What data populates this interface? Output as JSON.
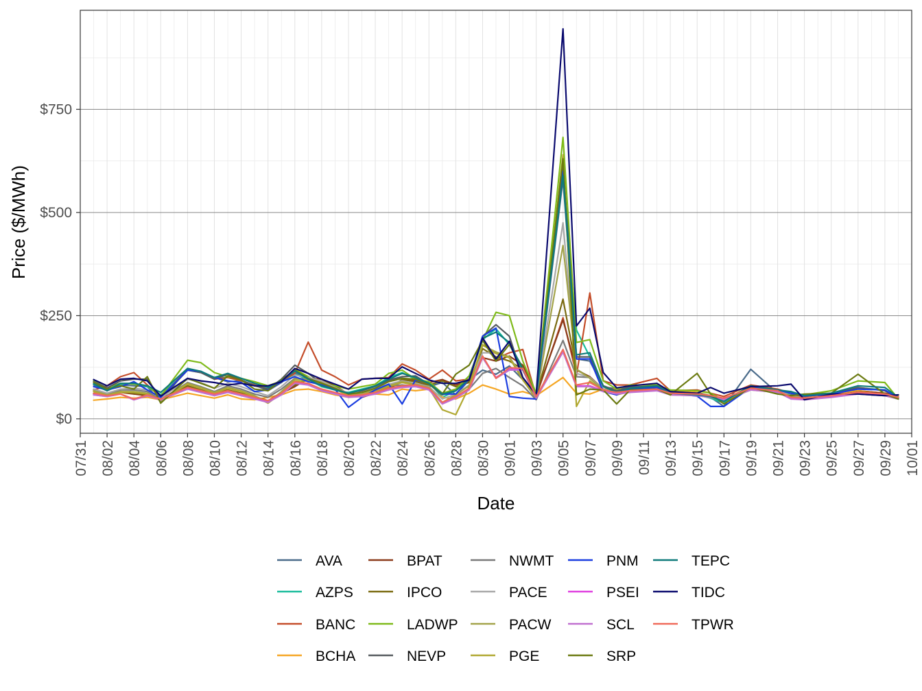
{
  "chart_data": {
    "type": "line",
    "xlabel": "Date",
    "ylabel": "Price ($/MWh)",
    "x_ticks": [
      "07/31",
      "08/02",
      "08/04",
      "08/06",
      "08/08",
      "08/10",
      "08/12",
      "08/14",
      "08/16",
      "08/18",
      "08/20",
      "08/22",
      "08/24",
      "08/26",
      "08/28",
      "08/30",
      "09/01",
      "09/03",
      "09/05",
      "09/07",
      "09/09",
      "09/11",
      "09/13",
      "09/15",
      "09/17",
      "09/19",
      "09/21",
      "09/23",
      "09/25",
      "09/27",
      "09/29",
      "10/01"
    ],
    "y_ticks": [
      {
        "value": 0,
        "label": "$0"
      },
      {
        "value": 250,
        "label": "$250"
      },
      {
        "value": 500,
        "label": "$500"
      },
      {
        "value": 750,
        "label": "$750"
      }
    ],
    "xlim": [
      "07/31",
      "10/01"
    ],
    "ylim": [
      -35,
      990
    ],
    "grid": true,
    "legend_position": "bottom",
    "key_dates": [
      "08/01",
      "08/02",
      "08/03",
      "08/04",
      "08/05",
      "08/06",
      "08/08",
      "08/09",
      "08/10",
      "08/11",
      "08/12",
      "08/13",
      "08/14",
      "08/15",
      "08/16",
      "08/17",
      "08/18",
      "08/19",
      "08/20",
      "08/21",
      "08/22",
      "08/23",
      "08/24",
      "08/25",
      "08/26",
      "08/27",
      "08/28",
      "08/29",
      "08/30",
      "08/31",
      "09/01",
      "09/02",
      "09/03",
      "09/05",
      "09/06",
      "09/07",
      "09/08",
      "09/09",
      "09/10",
      "09/12",
      "09/13",
      "09/15",
      "09/16",
      "09/17",
      "09/19",
      "09/21",
      "09/22",
      "09/23",
      "09/25",
      "09/27",
      "09/29",
      "09/30"
    ],
    "series": [
      {
        "name": "AVA",
        "color": "#4a6b8a",
        "values": [
          82,
          68,
          82,
          80,
          78,
          42,
          122,
          112,
          100,
          90,
          92,
          82,
          68,
          88,
          112,
          92,
          82,
          70,
          62,
          68,
          78,
          92,
          98,
          92,
          78,
          88,
          58,
          94,
          118,
          108,
          128,
          95,
          48,
          580,
          145,
          140,
          78,
          72,
          78,
          78,
          62,
          60,
          52,
          30,
          120,
          62,
          58,
          52,
          58,
          68,
          62,
          55
        ]
      },
      {
        "name": "AZPS",
        "color": "#1abc9c",
        "values": [
          84,
          70,
          84,
          86,
          78,
          58,
          118,
          112,
          100,
          100,
          92,
          80,
          78,
          92,
          108,
          95,
          78,
          70,
          64,
          72,
          80,
          100,
          112,
          96,
          88,
          52,
          68,
          96,
          192,
          218,
          180,
          118,
          56,
          600,
          215,
          150,
          80,
          65,
          72,
          76,
          62,
          58,
          50,
          38,
          78,
          62,
          62,
          55,
          60,
          75,
          70,
          50
        ]
      },
      {
        "name": "BANC",
        "color": "#c44d2a",
        "values": [
          70,
          80,
          102,
          112,
          82,
          52,
          120,
          115,
          96,
          100,
          92,
          82,
          72,
          92,
          110,
          186,
          118,
          102,
          82,
          96,
          98,
          100,
          133,
          118,
          96,
          118,
          92,
          96,
          196,
          146,
          160,
          168,
          54,
          245,
          105,
          305,
          92,
          82,
          82,
          98,
          68,
          70,
          62,
          54,
          82,
          72,
          62,
          52,
          58,
          68,
          62,
          55
        ]
      },
      {
        "name": "BCHA",
        "color": "#f5a623",
        "values": [
          45,
          48,
          52,
          50,
          52,
          46,
          62,
          56,
          50,
          58,
          48,
          46,
          52,
          58,
          70,
          72,
          66,
          58,
          52,
          56,
          60,
          58,
          72,
          68,
          72,
          52,
          48,
          62,
          82,
          72,
          60,
          66,
          56,
          100,
          62,
          60,
          72,
          72,
          70,
          72,
          68,
          64,
          56,
          48,
          72,
          66,
          52,
          50,
          60,
          68,
          60,
          55
        ]
      },
      {
        "name": "BPAT",
        "color": "#8b3a1a",
        "values": [
          60,
          56,
          64,
          60,
          56,
          48,
          78,
          68,
          60,
          68,
          60,
          52,
          42,
          62,
          78,
          98,
          96,
          80,
          60,
          52,
          62,
          72,
          92,
          95,
          88,
          95,
          82,
          92,
          148,
          140,
          152,
          130,
          58,
          240,
          118,
          102,
          72,
          62,
          68,
          72,
          62,
          60,
          56,
          48,
          72,
          68,
          56,
          50,
          56,
          65,
          62,
          52
        ]
      },
      {
        "name": "IPCO",
        "color": "#7a6a10",
        "values": [
          62,
          58,
          66,
          62,
          58,
          48,
          80,
          70,
          62,
          70,
          62,
          54,
          44,
          64,
          82,
          95,
          92,
          80,
          60,
          54,
          64,
          75,
          95,
          90,
          82,
          92,
          78,
          88,
          170,
          150,
          140,
          120,
          56,
          290,
          120,
          100,
          72,
          60,
          70,
          72,
          60,
          58,
          54,
          48,
          72,
          66,
          54,
          50,
          56,
          64,
          60,
          50
        ]
      },
      {
        "name": "LADWP",
        "color": "#7fba1a",
        "values": [
          92,
          75,
          86,
          84,
          80,
          55,
          142,
          136,
          112,
          102,
          98,
          90,
          80,
          92,
          120,
          102,
          84,
          80,
          72,
          78,
          84,
          110,
          118,
          96,
          90,
          62,
          72,
          104,
          190,
          258,
          250,
          140,
          62,
          682,
          185,
          192,
          92,
          72,
          82,
          82,
          70,
          68,
          62,
          45,
          80,
          70,
          62,
          58,
          68,
          92,
          88,
          48
        ]
      },
      {
        "name": "NEVP",
        "color": "#555a5e",
        "values": [
          90,
          75,
          92,
          96,
          96,
          48,
          118,
          112,
          96,
          108,
          94,
          80,
          72,
          96,
          130,
          110,
          86,
          72,
          62,
          68,
          80,
          94,
          102,
          104,
          84,
          58,
          68,
          96,
          200,
          228,
          200,
          100,
          58,
          620,
          150,
          150,
          80,
          68,
          76,
          80,
          66,
          62,
          56,
          42,
          80,
          70,
          62,
          55,
          60,
          76,
          68,
          50
        ]
      },
      {
        "name": "NWMT",
        "color": "#7a7a7a",
        "values": [
          68,
          60,
          70,
          70,
          66,
          46,
          88,
          78,
          66,
          80,
          72,
          60,
          52,
          72,
          98,
          96,
          90,
          72,
          58,
          60,
          70,
          80,
          82,
          80,
          72,
          38,
          52,
          72,
          110,
          122,
          100,
          80,
          46,
          190,
          102,
          100,
          70,
          62,
          70,
          72,
          62,
          60,
          56,
          48,
          72,
          66,
          56,
          50,
          56,
          64,
          60,
          50
        ]
      },
      {
        "name": "PACE",
        "color": "#a8a8a8",
        "values": [
          72,
          62,
          72,
          74,
          70,
          50,
          96,
          88,
          74,
          86,
          78,
          66,
          56,
          78,
          106,
          100,
          92,
          76,
          62,
          64,
          74,
          84,
          92,
          86,
          78,
          48,
          60,
          82,
          160,
          160,
          150,
          100,
          54,
          475,
          110,
          100,
          72,
          62,
          72,
          74,
          62,
          60,
          56,
          48,
          72,
          68,
          56,
          50,
          56,
          64,
          60,
          52
        ]
      },
      {
        "name": "PACW",
        "color": "#a3a34a",
        "values": [
          68,
          58,
          66,
          66,
          62,
          44,
          86,
          76,
          64,
          76,
          68,
          56,
          40,
          66,
          96,
          96,
          88,
          74,
          58,
          60,
          70,
          80,
          90,
          84,
          76,
          40,
          58,
          80,
          178,
          162,
          150,
          96,
          52,
          420,
          120,
          98,
          70,
          60,
          70,
          72,
          60,
          58,
          54,
          46,
          72,
          66,
          54,
          50,
          56,
          62,
          58,
          50
        ]
      },
      {
        "name": "PGE",
        "color": "#b0a830",
        "values": [
          66,
          56,
          64,
          64,
          60,
          44,
          84,
          74,
          62,
          74,
          66,
          54,
          38,
          62,
          92,
          92,
          86,
          72,
          56,
          58,
          68,
          78,
          88,
          82,
          74,
          22,
          10,
          78,
          180,
          158,
          148,
          94,
          50,
          640,
          30,
          92,
          68,
          58,
          66,
          70,
          58,
          56,
          52,
          44,
          70,
          64,
          52,
          48,
          54,
          60,
          56,
          48
        ]
      },
      {
        "name": "PNM",
        "color": "#1a3de0",
        "values": [
          78,
          70,
          78,
          90,
          70,
          52,
          118,
          115,
          100,
          92,
          88,
          66,
          70,
          90,
          102,
          90,
          82,
          72,
          28,
          52,
          70,
          84,
          36,
          94,
          85,
          60,
          60,
          96,
          200,
          220,
          54,
          50,
          48,
          600,
          145,
          145,
          66,
          58,
          72,
          76,
          62,
          55,
          30,
          30,
          76,
          70,
          62,
          55,
          60,
          72,
          70,
          50
        ]
      },
      {
        "name": "PSEI",
        "color": "#e040e0",
        "values": [
          58,
          54,
          60,
          46,
          56,
          46,
          74,
          66,
          58,
          66,
          58,
          50,
          42,
          60,
          88,
          84,
          70,
          62,
          54,
          56,
          62,
          72,
          78,
          80,
          72,
          38,
          52,
          72,
          150,
          100,
          120,
          120,
          52,
          165,
          80,
          80,
          68,
          62,
          66,
          70,
          60,
          58,
          54,
          48,
          72,
          66,
          50,
          48,
          54,
          62,
          58,
          50
        ]
      },
      {
        "name": "SCL",
        "color": "#c070d0",
        "values": [
          58,
          54,
          60,
          46,
          56,
          46,
          72,
          64,
          56,
          64,
          56,
          48,
          40,
          58,
          86,
          82,
          68,
          60,
          52,
          54,
          60,
          70,
          76,
          78,
          70,
          36,
          50,
          70,
          148,
          98,
          118,
          118,
          50,
          162,
          78,
          78,
          66,
          60,
          64,
          68,
          58,
          56,
          52,
          46,
          70,
          64,
          48,
          46,
          52,
          60,
          56,
          48
        ]
      },
      {
        "name": "SRP",
        "color": "#6b7a10",
        "values": [
          88,
          72,
          80,
          72,
          102,
          38,
          98,
          86,
          74,
          104,
          94,
          72,
          68,
          94,
          118,
          98,
          86,
          74,
          60,
          64,
          74,
          90,
          98,
          96,
          84,
          60,
          108,
          130,
          190,
          140,
          180,
          124,
          54,
          630,
          58,
          72,
          70,
          36,
          70,
          72,
          58,
          110,
          60,
          36,
          76,
          60,
          56,
          60,
          62,
          108,
          60,
          48
        ]
      },
      {
        "name": "TEPC",
        "color": "#0e7a7a",
        "values": [
          85,
          68,
          86,
          86,
          80,
          64,
          122,
          115,
          100,
          110,
          98,
          86,
          76,
          92,
          116,
          96,
          80,
          70,
          62,
          70,
          80,
          96,
          110,
          100,
          86,
          60,
          68,
          96,
          195,
          210,
          185,
          120,
          56,
          590,
          155,
          160,
          78,
          64,
          74,
          80,
          62,
          58,
          54,
          42,
          80,
          70,
          66,
          56,
          62,
          80,
          76,
          52
        ]
      },
      {
        "name": "TIDC",
        "color": "#0a0a6e",
        "values": [
          95,
          80,
          96,
          98,
          92,
          55,
          98,
          92,
          88,
          82,
          86,
          80,
          80,
          90,
          122,
          110,
          96,
          84,
          72,
          96,
          98,
          98,
          126,
          110,
          94,
          86,
          86,
          94,
          196,
          145,
          188,
          100,
          58,
          945,
          225,
          268,
          112,
          75,
          80,
          86,
          66,
          62,
          76,
          62,
          78,
          80,
          84,
          46,
          60,
          60,
          56,
          58
        ]
      },
      {
        "name": "TPWR",
        "color": "#f06a5a",
        "values": [
          62,
          56,
          60,
          48,
          58,
          48,
          76,
          68,
          60,
          68,
          60,
          52,
          44,
          62,
          90,
          86,
          72,
          64,
          56,
          58,
          64,
          74,
          80,
          82,
          74,
          40,
          54,
          74,
          152,
          98,
          124,
          122,
          54,
          168,
          82,
          88,
          70,
          64,
          68,
          72,
          62,
          60,
          56,
          50,
          74,
          68,
          52,
          50,
          56,
          64,
          60,
          52
        ]
      }
    ]
  }
}
